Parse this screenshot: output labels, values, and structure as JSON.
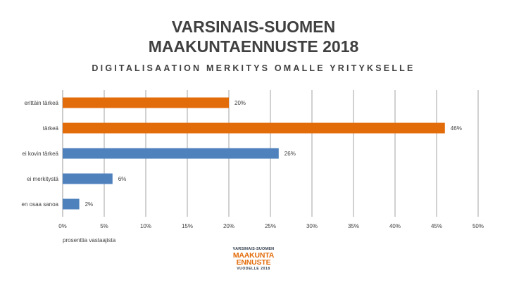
{
  "title_line1": "VARSINAIS-SUOMEN",
  "title_line2": "MAAKUNTAENNUSTE 2018",
  "subtitle": "DIGITALISAATION MERKITYS OMALLE YRITYKSELLE",
  "chart_data": {
    "type": "bar",
    "orientation": "horizontal",
    "categories": [
      "erittäin tärkeä",
      "tärkeä",
      "ei kovin tärkeä",
      "ei merkitystä",
      "en osaa sanoa"
    ],
    "values": [
      20,
      46,
      26,
      6,
      2
    ],
    "value_labels": [
      "20%",
      "46%",
      "26%",
      "6%",
      "2%"
    ],
    "bar_colors": [
      "#e36c0a",
      "#e36c0a",
      "#4f81bd",
      "#4f81bd",
      "#4f81bd"
    ],
    "xlim": [
      0,
      50
    ],
    "xticks": [
      "0%",
      "5%",
      "10%",
      "15%",
      "20%",
      "25%",
      "30%",
      "35%",
      "40%",
      "45%",
      "50%"
    ],
    "xlabel": "prosenttia vastaajista",
    "grid": "vertical",
    "legend": "none"
  },
  "logo": {
    "line1": "VARSINAIS-SUOMEN",
    "line2": "MAAKUNTA",
    "line3": "ENNUSTE",
    "line4": "VUODELLE 2018"
  }
}
